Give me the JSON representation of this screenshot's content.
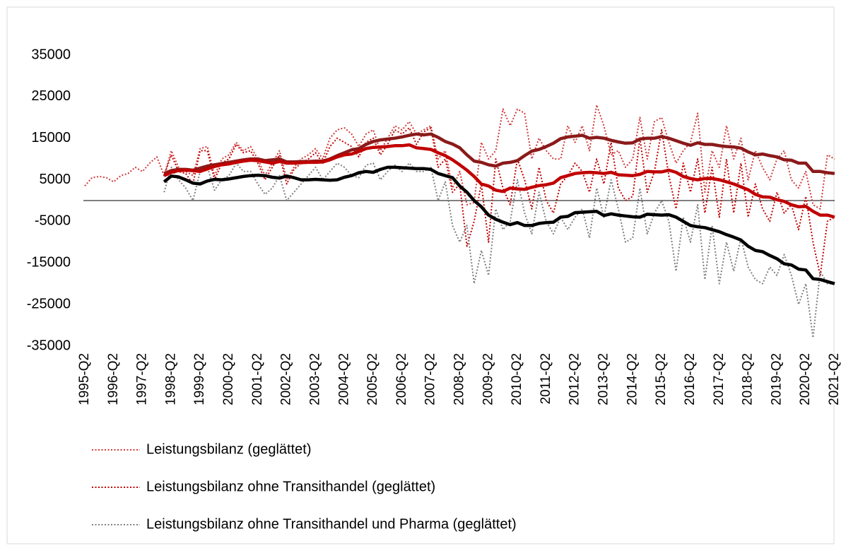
{
  "chart_data": {
    "type": "line",
    "categories": [
      "1995-Q2",
      null,
      null,
      null,
      "1996-Q2",
      null,
      null,
      null,
      "1997-Q2",
      null,
      null,
      null,
      "1998-Q2",
      null,
      null,
      null,
      "1999-Q2",
      null,
      null,
      null,
      "2000-Q2",
      null,
      null,
      null,
      "2001-Q2",
      null,
      null,
      null,
      "2002-Q2",
      null,
      null,
      null,
      "2003-Q2",
      null,
      null,
      null,
      "2004-Q2",
      null,
      null,
      null,
      "2005-Q2",
      null,
      null,
      null,
      "2006-Q2",
      null,
      null,
      null,
      "2007-Q2",
      null,
      null,
      null,
      "2008-Q2",
      null,
      null,
      null,
      "2009-Q2",
      null,
      null,
      null,
      "2010-Q2",
      null,
      null,
      null,
      "2011-Q2",
      null,
      null,
      null,
      "2012-Q2",
      null,
      null,
      null,
      "2013-Q2",
      null,
      null,
      null,
      "2014-Q2",
      null,
      null,
      null,
      "2015-Q2",
      null,
      null,
      null,
      "2016-Q2",
      null,
      null,
      null,
      "2017-Q2",
      null,
      null,
      null,
      "2018-Q2",
      null,
      null,
      null,
      "2019-Q2",
      null,
      null,
      null,
      "2020-Q2",
      null,
      null,
      null,
      "2021-Q2"
    ],
    "ylim": [
      -35000,
      35000
    ],
    "yticks": [
      -35000,
      -25000,
      -15000,
      -5000,
      5000,
      15000,
      25000,
      35000
    ],
    "series": [
      {
        "name": "Leistungsbilanz (geglättet)",
        "color": "#d03a3a",
        "style": "dotted",
        "values": [
          3500,
          5500,
          5800,
          5500,
          4500,
          6000,
          6500,
          8000,
          7000,
          9000,
          10500,
          6000,
          12000,
          8000,
          7000,
          6000,
          12500,
          13000,
          6000,
          10000,
          11000,
          14000,
          12000,
          13000,
          10000,
          6000,
          9000,
          12000,
          5000,
          8000,
          10000,
          11000,
          12500,
          10000,
          15000,
          17000,
          17500,
          16000,
          13000,
          16000,
          17000,
          12000,
          15000,
          18000,
          17000,
          19000,
          16000,
          17000,
          18000,
          10000,
          12000,
          3000,
          7000,
          -1000,
          -500,
          14000,
          10000,
          12000,
          22000,
          18000,
          22000,
          21000,
          10000,
          15000,
          12000,
          10000,
          10000,
          18000,
          14000,
          18000,
          12000,
          23000,
          18000,
          11000,
          12000,
          8000,
          10000,
          20000,
          10000,
          19000,
          20000,
          14000,
          9000,
          12000,
          14000,
          21000,
          2000,
          12000,
          8000,
          18000,
          10000,
          15000,
          5000,
          12000,
          8000,
          5000,
          10000,
          12000,
          5000,
          3000,
          7000,
          -1000,
          -2000,
          11000,
          10000
        ]
      },
      {
        "name": "Leistungsbilanz ohne Transithandel (geglättet)",
        "color": "#c00000",
        "style": "dotted",
        "values": [
          null,
          null,
          null,
          null,
          null,
          null,
          null,
          null,
          null,
          null,
          null,
          6000,
          11000,
          7000,
          6500,
          4000,
          12000,
          12000,
          5000,
          9000,
          10000,
          13500,
          11500,
          12000,
          9000,
          5000,
          8000,
          11000,
          4000,
          7500,
          9000,
          10000,
          11500,
          9000,
          13000,
          15000,
          14000,
          13000,
          10500,
          14000,
          15000,
          11000,
          13500,
          17000,
          16000,
          17500,
          13500,
          16500,
          17500,
          8000,
          10000,
          2000,
          4000,
          -11000,
          -5000,
          4000,
          -10000,
          10000,
          3000,
          -1000,
          10000,
          5000,
          -2000,
          8000,
          0,
          -3000,
          4000,
          6000,
          9000,
          7000,
          2000,
          10000,
          4000,
          14000,
          3000,
          0,
          1000,
          15000,
          2000,
          7000,
          17000,
          6000,
          -2000,
          9000,
          2000,
          10000,
          -3000,
          8000,
          -4000,
          10000,
          -3000,
          9000,
          -4000,
          4000,
          -2000,
          -5000,
          2000,
          -3000,
          -1000,
          -7000,
          1000,
          -10000,
          -18000,
          -5000,
          -4000
        ]
      },
      {
        "name": "Leistungsbilanz ohne Transithandel und Pharma (geglättet)",
        "color": "#7f7f7f",
        "style": "dotted",
        "values": [
          null,
          null,
          null,
          null,
          null,
          null,
          null,
          null,
          null,
          null,
          null,
          2000,
          8000,
          5000,
          3000,
          0,
          7000,
          8000,
          2500,
          5000,
          6000,
          9000,
          7000,
          7000,
          4000,
          1500,
          3000,
          6000,
          0,
          2000,
          4000,
          6000,
          8000,
          5000,
          7000,
          9000,
          8000,
          6000,
          5500,
          8500,
          9000,
          5000,
          7000,
          8500,
          7000,
          9000,
          7000,
          7000,
          8000,
          0,
          4500,
          -6000,
          -10000,
          -6000,
          -20000,
          -12000,
          -18000,
          -2000,
          -7000,
          -5000,
          5000,
          -3000,
          -8000,
          2000,
          -5000,
          -8000,
          -4000,
          -7000,
          -4000,
          -2000,
          -9000,
          3000,
          -4000,
          5000,
          -2000,
          -10000,
          -9000,
          3000,
          -8000,
          -3000,
          0,
          -5000,
          -17000,
          -4000,
          -10000,
          -1000,
          -19000,
          -6000,
          -20000,
          -10000,
          -17000,
          -9000,
          -16000,
          -19000,
          -20000,
          -16000,
          -18000,
          -13000,
          -18000,
          -25000,
          -20000,
          -33000,
          -17000,
          -20000,
          -20000
        ]
      },
      {
        "color": "#8b1a1a",
        "style": "solid",
        "values": [
          null,
          null,
          null,
          null,
          null,
          null,
          null,
          null,
          null,
          null,
          null,
          6500,
          7200,
          7500,
          7500,
          7300,
          7800,
          8300,
          8600,
          8900,
          9200,
          9500,
          9800,
          10000,
          10000,
          9600,
          9800,
          10000,
          9300,
          9300,
          9400,
          9400,
          9500,
          9500,
          10000,
          10800,
          11500,
          12200,
          12500,
          13500,
          14200,
          14600,
          14800,
          15000,
          15300,
          15700,
          16000,
          15800,
          16000,
          15200,
          14200,
          13600,
          12700,
          11000,
          9500,
          9200,
          8600,
          8300,
          9000,
          9200,
          9600,
          10800,
          11900,
          12300,
          13000,
          13800,
          14900,
          15300,
          15500,
          15700,
          15000,
          15200,
          15000,
          14500,
          14100,
          13800,
          13900,
          14800,
          15000,
          15000,
          15400,
          15000,
          14400,
          13800,
          13300,
          13900,
          13500,
          13500,
          13200,
          13000,
          12900,
          12600,
          11700,
          11000,
          11200,
          10800,
          10500,
          9800,
          9700,
          9000,
          9000,
          7000,
          7000,
          6700,
          6500
        ]
      },
      {
        "color": "#c00000",
        "style": "solid",
        "values": [
          null,
          null,
          null,
          null,
          null,
          null,
          null,
          null,
          null,
          null,
          null,
          6000,
          6800,
          7200,
          7300,
          7200,
          7000,
          7600,
          8200,
          8600,
          8800,
          9200,
          9500,
          9700,
          9600,
          9300,
          9000,
          9400,
          9000,
          9000,
          9100,
          9200,
          9200,
          9300,
          9800,
          10500,
          11000,
          11200,
          11800,
          12500,
          12800,
          12900,
          13000,
          13200,
          13200,
          13400,
          12700,
          12500,
          12300,
          11500,
          10800,
          9800,
          8600,
          7300,
          5800,
          4000,
          3500,
          2500,
          2200,
          3000,
          2800,
          2700,
          3200,
          3600,
          3800,
          4200,
          5500,
          6000,
          6500,
          6700,
          6800,
          6700,
          6500,
          6800,
          6200,
          6100,
          6000,
          6300,
          7000,
          6900,
          6900,
          7300,
          6800,
          5800,
          5300,
          5000,
          5300,
          5300,
          5000,
          4500,
          4000,
          3300,
          2600,
          1500,
          900,
          800,
          200,
          -200,
          -1000,
          -1500,
          -1400,
          -2600,
          -3500,
          -3500,
          -4000
        ]
      },
      {
        "color": "#000000",
        "style": "solid",
        "values": [
          null,
          null,
          null,
          null,
          null,
          null,
          null,
          null,
          null,
          null,
          null,
          4500,
          5900,
          5700,
          5000,
          4200,
          4000,
          4700,
          5100,
          5000,
          5200,
          5500,
          5800,
          6000,
          6100,
          6000,
          5600,
          5400,
          5900,
          5500,
          5000,
          5000,
          5100,
          5000,
          4900,
          5000,
          5600,
          6000,
          6700,
          7000,
          6800,
          7500,
          8000,
          8000,
          7900,
          7800,
          7700,
          7700,
          7500,
          6500,
          6000,
          5500,
          3500,
          2000,
          0,
          -1500,
          -3500,
          -4500,
          -5200,
          -5800,
          -5300,
          -6000,
          -6000,
          -5500,
          -5300,
          -5200,
          -4000,
          -3800,
          -2900,
          -2800,
          -2700,
          -2600,
          -3600,
          -3200,
          -3500,
          -3700,
          -3900,
          -4000,
          -3300,
          -3400,
          -3500,
          -3400,
          -4000,
          -5000,
          -6000,
          -6300,
          -6500,
          -7000,
          -7500,
          -8200,
          -8800,
          -9500,
          -11000,
          -12000,
          -12300,
          -13200,
          -14000,
          -15200,
          -15500,
          -16500,
          -16700,
          -18800,
          -19000,
          -19500,
          -20000
        ]
      }
    ]
  }
}
